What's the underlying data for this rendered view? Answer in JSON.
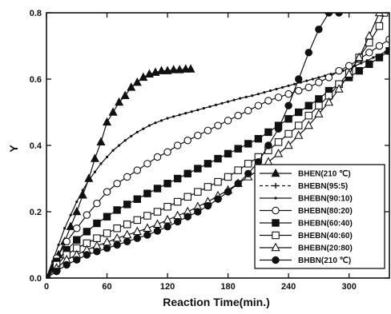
{
  "chart_data": {
    "type": "line",
    "title": "",
    "xlabel": "Reaction Time(min.)",
    "ylabel": "Y",
    "xlim": [
      0,
      340
    ],
    "ylim": [
      0,
      0.8
    ],
    "grid": false,
    "legend_position": "bottom-right",
    "x_ticks": [
      {
        "value": 0,
        "label": "0"
      },
      {
        "value": 60,
        "label": "60"
      },
      {
        "value": 120,
        "label": "120"
      },
      {
        "value": 180,
        "label": "180"
      },
      {
        "value": 240,
        "label": "240"
      },
      {
        "value": 300,
        "label": "300"
      }
    ],
    "y_ticks": [
      {
        "value": 0,
        "label": "0.0"
      },
      {
        "value": 0.2,
        "label": "0.2"
      },
      {
        "value": 0.4,
        "label": "0.4"
      },
      {
        "value": 0.6,
        "label": "0.6"
      },
      {
        "value": 0.8,
        "label": "0.8"
      }
    ],
    "series": [
      {
        "name": "BHEN(210 ℃)",
        "marker": "triangle-filled",
        "line": "solid",
        "x": [
          0,
          6,
          12,
          18,
          24,
          30,
          36,
          42,
          48,
          54,
          60,
          66,
          72,
          78,
          84,
          90,
          96,
          102,
          108,
          114,
          120,
          126,
          132,
          138,
          143
        ],
        "y": [
          0.0,
          0.03,
          0.07,
          0.11,
          0.155,
          0.2,
          0.25,
          0.3,
          0.36,
          0.41,
          0.47,
          0.5,
          0.53,
          0.55,
          0.575,
          0.59,
          0.605,
          0.615,
          0.62,
          0.625,
          0.625,
          0.628,
          0.628,
          0.63,
          0.63
        ]
      },
      {
        "name": "BHEBN(95:5)",
        "marker": "plus",
        "line": "dashed",
        "x": [],
        "y": []
      },
      {
        "name": "BHEBN(90:10)",
        "marker": "small-dot",
        "line": "solid",
        "x": [
          0,
          6,
          12,
          18,
          24,
          30,
          36,
          42,
          48,
          54,
          60,
          66,
          72,
          78,
          84,
          90,
          96,
          102,
          108,
          114,
          120,
          126,
          132,
          138,
          144,
          150,
          156,
          162,
          168,
          174,
          180,
          186,
          192,
          198,
          204,
          210,
          216,
          222,
          228,
          234,
          240,
          246,
          252,
          258,
          264,
          270,
          276,
          282,
          288,
          294,
          300,
          306,
          312,
          318,
          324,
          330,
          336,
          340
        ],
        "y": [
          0.0,
          0.05,
          0.1,
          0.15,
          0.19,
          0.23,
          0.265,
          0.295,
          0.32,
          0.345,
          0.365,
          0.385,
          0.4,
          0.415,
          0.428,
          0.44,
          0.45,
          0.46,
          0.468,
          0.475,
          0.482,
          0.487,
          0.492,
          0.497,
          0.502,
          0.507,
          0.512,
          0.517,
          0.522,
          0.527,
          0.532,
          0.537,
          0.542,
          0.546,
          0.55,
          0.555,
          0.56,
          0.565,
          0.57,
          0.575,
          0.58,
          0.585,
          0.59,
          0.595,
          0.6,
          0.605,
          0.61,
          0.615,
          0.62,
          0.625,
          0.632,
          0.64,
          0.648,
          0.656,
          0.665,
          0.673,
          0.682,
          0.688
        ]
      },
      {
        "name": "BHEBN(80:20)",
        "marker": "circle-open",
        "line": "solid",
        "x": [
          0,
          10,
          20,
          30,
          40,
          50,
          60,
          70,
          80,
          90,
          100,
          110,
          120,
          130,
          140,
          150,
          160,
          170,
          180,
          190,
          200,
          210,
          220,
          230,
          240,
          250,
          260,
          270,
          280,
          290,
          300,
          310,
          320,
          330,
          340
        ],
        "y": [
          0.0,
          0.06,
          0.11,
          0.15,
          0.19,
          0.225,
          0.26,
          0.285,
          0.305,
          0.325,
          0.345,
          0.365,
          0.38,
          0.4,
          0.415,
          0.43,
          0.445,
          0.46,
          0.475,
          0.49,
          0.505,
          0.52,
          0.535,
          0.545,
          0.555,
          0.565,
          0.575,
          0.59,
          0.605,
          0.625,
          0.64,
          0.66,
          0.68,
          0.7,
          0.72
        ]
      },
      {
        "name": "BHEBN(60:40)",
        "marker": "square-filled",
        "line": "solid",
        "x": [
          0,
          10,
          20,
          30,
          40,
          50,
          60,
          70,
          80,
          90,
          100,
          110,
          120,
          130,
          140,
          150,
          160,
          170,
          180,
          190,
          200,
          210,
          220,
          230,
          240,
          250,
          260,
          270,
          280,
          290,
          300,
          310,
          320,
          330,
          340
        ],
        "y": [
          0.0,
          0.05,
          0.085,
          0.115,
          0.14,
          0.165,
          0.185,
          0.205,
          0.222,
          0.238,
          0.255,
          0.27,
          0.285,
          0.3,
          0.315,
          0.33,
          0.345,
          0.36,
          0.375,
          0.39,
          0.405,
          0.42,
          0.44,
          0.46,
          0.48,
          0.5,
          0.52,
          0.54,
          0.565,
          0.585,
          0.605,
          0.625,
          0.645,
          0.665,
          0.685
        ]
      },
      {
        "name": "BHEBN(40:60)",
        "marker": "square-open",
        "line": "solid",
        "x": [
          0,
          10,
          20,
          30,
          40,
          50,
          60,
          70,
          80,
          90,
          100,
          110,
          120,
          130,
          140,
          150,
          160,
          170,
          180,
          190,
          200,
          210,
          220,
          230,
          240,
          250,
          260,
          270,
          280,
          290,
          300,
          310,
          320,
          330,
          335
        ],
        "y": [
          0.0,
          0.04,
          0.07,
          0.09,
          0.105,
          0.12,
          0.135,
          0.15,
          0.162,
          0.175,
          0.188,
          0.2,
          0.215,
          0.23,
          0.245,
          0.26,
          0.275,
          0.29,
          0.305,
          0.325,
          0.345,
          0.365,
          0.385,
          0.41,
          0.435,
          0.46,
          0.49,
          0.52,
          0.55,
          0.585,
          0.62,
          0.665,
          0.71,
          0.76,
          0.8
        ]
      },
      {
        "name": "BHEBN(20:80)",
        "marker": "triangle-open",
        "line": "solid",
        "x": [
          0,
          10,
          20,
          30,
          40,
          50,
          60,
          70,
          80,
          90,
          100,
          110,
          120,
          130,
          140,
          150,
          160,
          170,
          180,
          190,
          200,
          210,
          220,
          230,
          240,
          250,
          260,
          270,
          280,
          290,
          300,
          310,
          320,
          330
        ],
        "y": [
          0.0,
          0.03,
          0.055,
          0.07,
          0.085,
          0.097,
          0.108,
          0.12,
          0.13,
          0.14,
          0.15,
          0.162,
          0.175,
          0.188,
          0.2,
          0.215,
          0.23,
          0.248,
          0.265,
          0.285,
          0.305,
          0.325,
          0.35,
          0.375,
          0.4,
          0.43,
          0.46,
          0.495,
          0.53,
          0.57,
          0.615,
          0.665,
          0.73,
          0.8
        ]
      },
      {
        "name": "BHBN(210 ℃)",
        "marker": "circle-filled",
        "line": "solid",
        "x": [
          0,
          10,
          20,
          30,
          40,
          50,
          60,
          70,
          80,
          90,
          100,
          110,
          120,
          130,
          140,
          150,
          160,
          170,
          180,
          190,
          200,
          210,
          220,
          230,
          240,
          250,
          260,
          270,
          280,
          290
        ],
        "y": [
          0.0,
          0.02,
          0.04,
          0.055,
          0.07,
          0.08,
          0.09,
          0.1,
          0.11,
          0.12,
          0.13,
          0.142,
          0.155,
          0.17,
          0.185,
          0.2,
          0.218,
          0.238,
          0.26,
          0.285,
          0.315,
          0.35,
          0.4,
          0.45,
          0.52,
          0.6,
          0.68,
          0.75,
          0.8,
          0.8
        ]
      }
    ]
  }
}
